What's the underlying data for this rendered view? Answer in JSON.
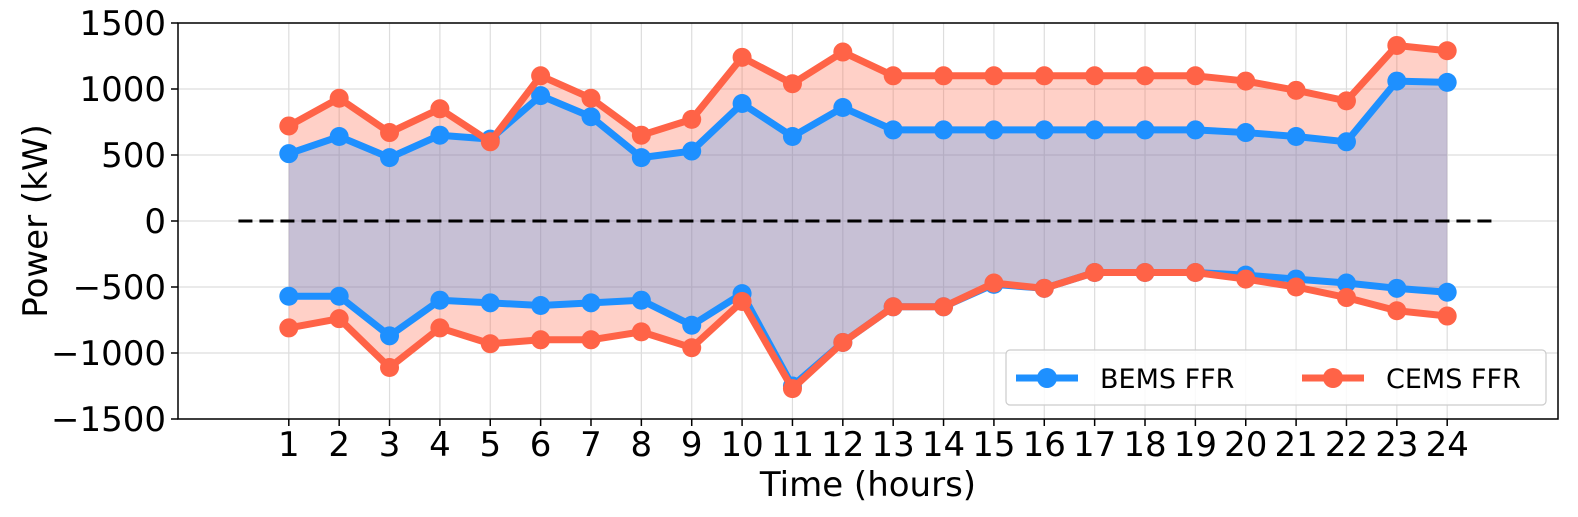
{
  "chart_data": {
    "type": "line",
    "xlabel": "Time (hours)",
    "ylabel": "Power (kW)",
    "x": [
      1,
      2,
      3,
      4,
      5,
      6,
      7,
      8,
      9,
      10,
      11,
      12,
      13,
      14,
      15,
      16,
      17,
      18,
      19,
      20,
      21,
      22,
      23,
      24
    ],
    "x_tick_labels": [
      "1",
      "2",
      "3",
      "4",
      "5",
      "6",
      "7",
      "8",
      "9",
      "10",
      "11",
      "12",
      "13",
      "14",
      "15",
      "16",
      "17",
      "18",
      "19",
      "20",
      "21",
      "22",
      "23",
      "24"
    ],
    "y_ticks": [
      -1500,
      -1000,
      -500,
      0,
      500,
      1000,
      1500
    ],
    "y_tick_labels": [
      "−1500",
      "−1000",
      "−500",
      "0",
      "500",
      "1000",
      "1500"
    ],
    "xlim": [
      -1.2,
      26.2
    ],
    "ylim": [
      -1500,
      1500
    ],
    "grid": true,
    "zero_line": {
      "style": "dashed",
      "color": "#000000"
    },
    "legend_placement": "lower-right",
    "series": [
      {
        "name": "BEMS FFR",
        "color": "#1E90FF",
        "upper": [
          510,
          640,
          480,
          650,
          620,
          950,
          790,
          480,
          530,
          890,
          640,
          860,
          690,
          690,
          690,
          690,
          690,
          690,
          690,
          670,
          640,
          600,
          1060,
          1050
        ],
        "lower": [
          -570,
          -570,
          -870,
          -600,
          -620,
          -640,
          -620,
          -600,
          -790,
          -550,
          -1250,
          -920,
          -650,
          -650,
          -480,
          -510,
          -390,
          -390,
          -390,
          -410,
          -440,
          -470,
          -510,
          -540
        ]
      },
      {
        "name": "CEMS FFR",
        "color": "#FF6347",
        "upper": [
          720,
          930,
          670,
          850,
          600,
          1100,
          930,
          650,
          770,
          1240,
          1040,
          1280,
          1100,
          1100,
          1100,
          1100,
          1100,
          1100,
          1100,
          1060,
          990,
          910,
          1330,
          1290
        ],
        "lower": [
          -810,
          -740,
          -1110,
          -810,
          -930,
          -900,
          -900,
          -840,
          -960,
          -610,
          -1270,
          -920,
          -650,
          -650,
          -470,
          -510,
          -390,
          -390,
          -390,
          -440,
          -500,
          -580,
          -680,
          -720
        ]
      }
    ]
  }
}
